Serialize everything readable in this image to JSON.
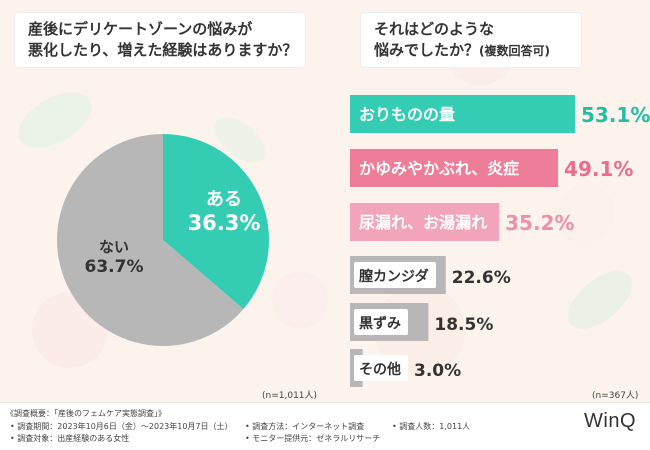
{
  "left_chart": {
    "question_line1": "産後にデリケートゾーンの悩みが",
    "question_line2": "悪化したり、増えた経験はありますか？",
    "sample": "(n=1,011人)",
    "colors": {
      "yes": "#34cdb3",
      "no": "#b7b7b7"
    }
  },
  "right_chart": {
    "question_line1": "それはどのような",
    "question_line2": "悩みでしたか？",
    "question_note": "(複数回答可)",
    "sample": "(n=367人)"
  },
  "chart_data": [
    {
      "type": "pie",
      "slices": [
        {
          "label": "ある",
          "value": 36.3,
          "value_text": "36.3%",
          "color": "#34cdb3"
        },
        {
          "label": "ない",
          "value": 63.7,
          "value_text": "63.7%",
          "color": "#b7b7b7"
        }
      ]
    },
    {
      "type": "bar",
      "orientation": "horizontal",
      "categories": [
        "おりものの量",
        "かゆみやかぶれ、炎症",
        "尿漏れ、お湯漏れ",
        "膣カンジダ",
        "黒ずみ",
        "その他"
      ],
      "values": [
        53.1,
        49.1,
        35.2,
        22.6,
        18.5,
        3.0
      ],
      "value_texts": [
        "53.1%",
        "49.1%",
        "35.2%",
        "22.6%",
        "18.5%",
        "3.0%"
      ],
      "colors": [
        "#34cdb3",
        "#ee7d98",
        "#f2a4bb",
        "#b7b7b7",
        "#b7b7b7",
        "#b7b7b7"
      ],
      "value_colors": [
        "#22bfa5",
        "#ec6d8b",
        "#ee8fab",
        "#333333",
        "#333333",
        "#333333"
      ],
      "label_colors": [
        "#ffffff",
        "#ffffff",
        "#ffffff",
        "#333333",
        "#333333",
        "#333333"
      ],
      "xlim": [
        0,
        60
      ]
    }
  ],
  "footer": {
    "summary_title": "《調査概要：「産後のフェムケア実態調査」》",
    "period": "• 調査期間：2023年10月6日（金）〜2023年10月7日（土）",
    "target": "• 調査対象：出産経験のある女性",
    "method": "• 調査方法：インターネット調査",
    "provider": "• モニター提供元：ゼネラルリサーチ",
    "count": "• 調査人数：1,011人",
    "logo": "WinQ"
  }
}
